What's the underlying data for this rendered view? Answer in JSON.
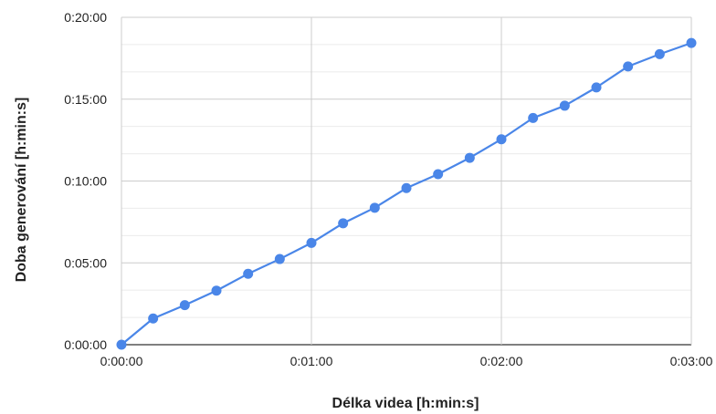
{
  "chart_data": {
    "type": "line",
    "title": "",
    "xlabel": "Délka videa [h:min:s]",
    "ylabel": "Doba generování [h:min:s]",
    "x_unit": "seconds",
    "y_unit": "seconds",
    "xlim": [
      0,
      180
    ],
    "ylim": [
      0,
      1200
    ],
    "x_ticks": [
      0,
      60,
      120,
      180
    ],
    "x_tick_labels": [
      "0:00:00",
      "0:01:00",
      "0:02:00",
      "0:03:00"
    ],
    "y_ticks": [
      0,
      300,
      600,
      900,
      1200
    ],
    "y_tick_labels": [
      "0:00:00",
      "0:05:00",
      "0:10:00",
      "0:15:00",
      "0:20:00"
    ],
    "y_minor_gridlines": [
      100,
      200,
      400,
      500,
      700,
      800,
      1000,
      1100
    ],
    "grid": true,
    "legend": "none",
    "series": [
      {
        "color": "#4a86e8",
        "x": [
          0,
          10,
          20,
          30,
          40,
          50,
          60,
          70,
          80,
          90,
          100,
          110,
          120,
          130,
          140,
          150,
          160,
          170,
          180
        ],
        "y": [
          0,
          96,
          145,
          198,
          260,
          314,
          373,
          445,
          502,
          574,
          625,
          685,
          753,
          831,
          876,
          943,
          1020,
          1065,
          1106
        ]
      }
    ]
  }
}
